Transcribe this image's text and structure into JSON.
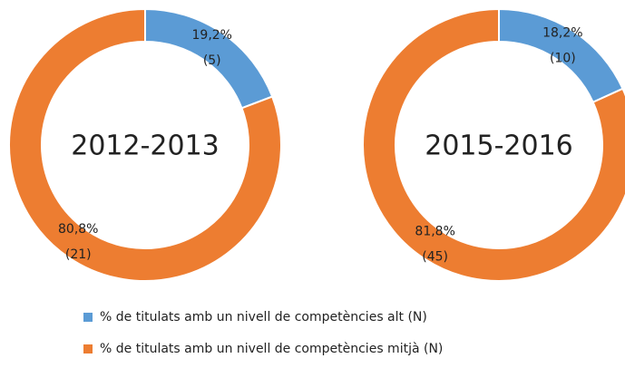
{
  "legend": [
    {
      "name": "% de titulats amb un nivell de competències alt (N)",
      "color": "#5b9bd5"
    },
    {
      "name": "% de titulats amb un nivell de competències mitjà (N)",
      "color": "#ed7d31"
    }
  ],
  "chart_data": [
    {
      "type": "pie",
      "donut": true,
      "center_label": "2012-2013",
      "values": [
        19.2,
        80.8
      ],
      "value_labels": [
        "19,2%",
        "80,8%"
      ],
      "counts": [
        5,
        21
      ],
      "count_labels": [
        "(5)",
        "(21)"
      ]
    },
    {
      "type": "pie",
      "donut": true,
      "center_label": "2015-2016",
      "values": [
        18.2,
        81.8
      ],
      "value_labels": [
        "18,2%",
        "81,8%"
      ],
      "counts": [
        10,
        45
      ],
      "count_labels": [
        "(10)",
        "(45)"
      ]
    }
  ]
}
